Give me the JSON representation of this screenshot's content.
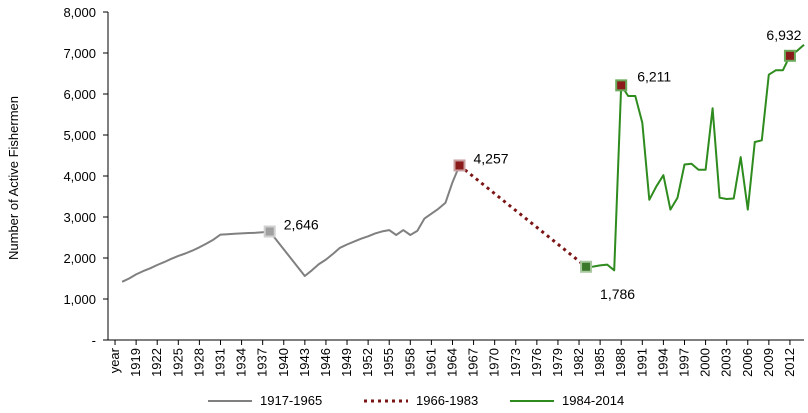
{
  "chart_data": {
    "type": "line",
    "ylabel": "Number of Active Fishermen",
    "ylim": [
      0,
      8000
    ],
    "y_ticks": [
      {
        "value": 0,
        "label": "-"
      },
      {
        "value": 1000,
        "label": "1,000"
      },
      {
        "value": 2000,
        "label": "2,000"
      },
      {
        "value": 3000,
        "label": "3,000"
      },
      {
        "value": 4000,
        "label": "4,000"
      },
      {
        "value": 5000,
        "label": "5,000"
      },
      {
        "value": 6000,
        "label": "6,000"
      },
      {
        "value": 7000,
        "label": "7,000"
      },
      {
        "value": 8000,
        "label": "8,000"
      }
    ],
    "x_range": [
      1915,
      2014
    ],
    "x_first_label": "year",
    "x_tick_labels": [
      "1919",
      "1922",
      "1925",
      "1928",
      "1931",
      "1934",
      "1937",
      "1940",
      "1943",
      "1946",
      "1949",
      "1952",
      "1955",
      "1958",
      "1961",
      "1964",
      "1967",
      "1970",
      "1973",
      "1976",
      "1979",
      "1982",
      "1985",
      "1988",
      "1991",
      "1994",
      "1997",
      "2000",
      "2003",
      "2006",
      "2009",
      "2012"
    ],
    "legend_position": "bottom",
    "series": [
      {
        "name": "1917-1965",
        "color": "#808080",
        "style": "solid",
        "points": [
          [
            1917,
            1420
          ],
          [
            1918,
            1500
          ],
          [
            1919,
            1600
          ],
          [
            1920,
            1680
          ],
          [
            1921,
            1750
          ],
          [
            1922,
            1830
          ],
          [
            1923,
            1900
          ],
          [
            1924,
            1980
          ],
          [
            1925,
            2050
          ],
          [
            1926,
            2110
          ],
          [
            1927,
            2180
          ],
          [
            1928,
            2260
          ],
          [
            1929,
            2350
          ],
          [
            1930,
            2450
          ],
          [
            1931,
            2570
          ],
          [
            1932,
            2580
          ],
          [
            1933,
            2590
          ],
          [
            1934,
            2600
          ],
          [
            1935,
            2610
          ],
          [
            1936,
            2615
          ],
          [
            1937,
            2630
          ],
          [
            1938,
            2646
          ],
          [
            1943,
            1560
          ],
          [
            1944,
            1700
          ],
          [
            1945,
            1850
          ],
          [
            1946,
            1960
          ],
          [
            1947,
            2100
          ],
          [
            1948,
            2250
          ],
          [
            1949,
            2330
          ],
          [
            1950,
            2400
          ],
          [
            1951,
            2470
          ],
          [
            1952,
            2530
          ],
          [
            1953,
            2600
          ],
          [
            1954,
            2650
          ],
          [
            1955,
            2680
          ],
          [
            1956,
            2560
          ],
          [
            1957,
            2680
          ],
          [
            1958,
            2560
          ],
          [
            1959,
            2660
          ],
          [
            1960,
            2960
          ],
          [
            1961,
            3080
          ],
          [
            1962,
            3200
          ],
          [
            1963,
            3350
          ],
          [
            1964,
            3850
          ],
          [
            1965,
            4257
          ]
        ]
      },
      {
        "name": "1966-1983",
        "color": "#7b1414",
        "style": "dotted",
        "points": [
          [
            1965,
            4257
          ],
          [
            1983,
            1786
          ]
        ]
      },
      {
        "name": "1984-2014",
        "color": "#2e8b1e",
        "style": "solid",
        "points": [
          [
            1983,
            1786
          ],
          [
            1984,
            1790
          ],
          [
            1985,
            1820
          ],
          [
            1986,
            1840
          ],
          [
            1987,
            1700
          ],
          [
            1988,
            6211
          ],
          [
            1989,
            5950
          ],
          [
            1990,
            5950
          ],
          [
            1991,
            5300
          ],
          [
            1992,
            3420
          ],
          [
            1993,
            3750
          ],
          [
            1994,
            4020
          ],
          [
            1995,
            3180
          ],
          [
            1996,
            3470
          ],
          [
            1997,
            4280
          ],
          [
            1998,
            4300
          ],
          [
            1999,
            4150
          ],
          [
            2000,
            4150
          ],
          [
            2001,
            5650
          ],
          [
            2002,
            3470
          ],
          [
            2003,
            3440
          ],
          [
            2004,
            3450
          ],
          [
            2005,
            4460
          ],
          [
            2006,
            3180
          ],
          [
            2007,
            4830
          ],
          [
            2008,
            4870
          ],
          [
            2009,
            6470
          ],
          [
            2010,
            6580
          ],
          [
            2011,
            6580
          ],
          [
            2012,
            6932
          ],
          [
            2013,
            7050
          ],
          [
            2014,
            7200
          ]
        ]
      }
    ],
    "markers": [
      {
        "x": 1938,
        "y": 2646,
        "label": "2,646",
        "fill": "#a0a0a0",
        "stroke": "#d0d0d0"
      },
      {
        "x": 1965,
        "y": 4257,
        "label": "4,257",
        "fill": "#8b1a1a",
        "stroke": "#c9a0a0"
      },
      {
        "x": 1983,
        "y": 1786,
        "label": "1,786",
        "fill": "#3a7a2a",
        "stroke": "#a8c8a0"
      },
      {
        "x": 1988,
        "y": 6211,
        "label": "6,211",
        "fill": "#8b1a1a",
        "stroke": "#6aaa5a"
      },
      {
        "x": 2012,
        "y": 6932,
        "label": "6,932",
        "fill": "#8b1a1a",
        "stroke": "#6aaa5a"
      }
    ]
  }
}
